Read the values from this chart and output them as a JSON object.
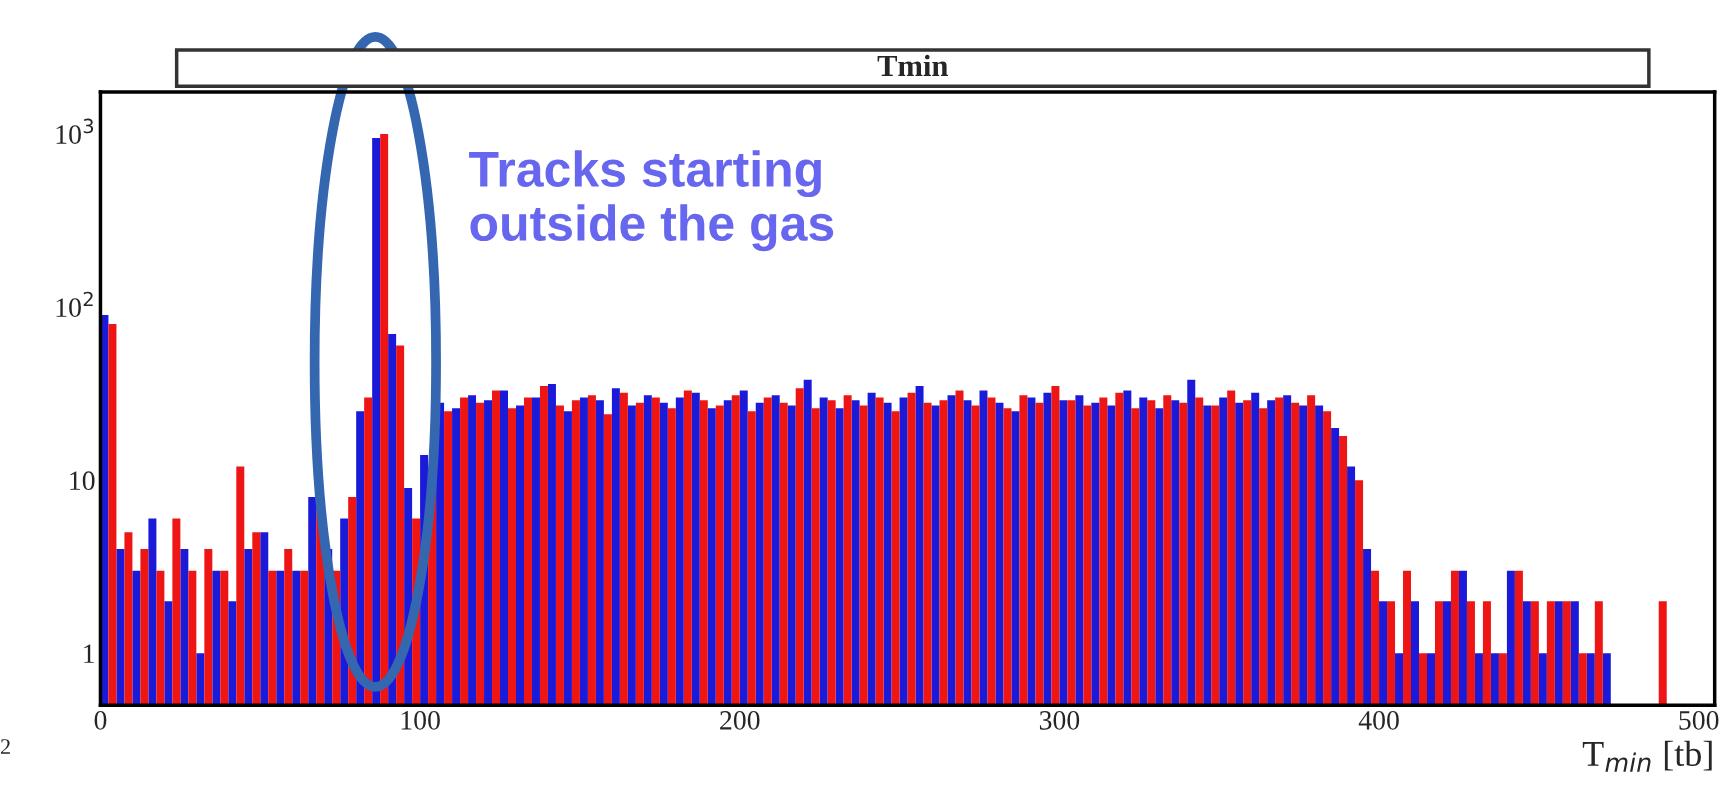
{
  "chart_data": {
    "type": "histogram",
    "title": "Tmin",
    "xlabel": "T$_{min}$ [tb]",
    "bins": [
      0,
      5,
      10,
      15,
      20,
      25,
      30,
      35,
      40,
      45,
      50,
      55,
      60,
      65,
      70,
      75,
      80,
      85,
      90,
      95,
      100,
      105,
      110,
      115,
      120,
      125,
      130,
      135,
      140,
      145,
      150,
      155,
      160,
      165,
      170,
      175,
      180,
      185,
      190,
      195,
      200,
      205,
      210,
      215,
      220,
      225,
      230,
      235,
      240,
      245,
      250,
      255,
      260,
      265,
      270,
      275,
      280,
      285,
      290,
      295,
      300,
      305,
      310,
      315,
      320,
      325,
      330,
      335,
      340,
      345,
      350,
      355,
      360,
      365,
      370,
      375,
      380,
      385,
      390,
      395,
      400,
      405,
      410,
      415,
      420,
      425,
      430,
      435,
      440,
      445,
      450,
      455,
      460,
      465,
      470,
      475,
      480,
      485,
      490,
      495,
      500
    ],
    "series": [
      {
        "color": "#1a1ad8",
        "values": [
          90,
          4,
          3,
          6,
          2,
          4,
          1,
          3,
          2,
          4,
          5,
          3,
          3,
          8,
          4,
          6,
          25,
          950,
          70,
          9,
          14,
          28,
          26,
          31,
          29,
          33,
          27,
          30,
          36,
          25,
          30,
          29,
          34,
          27,
          31,
          28,
          30,
          32,
          26,
          29,
          33,
          28,
          31,
          27,
          38,
          30,
          26,
          29,
          32,
          28,
          30,
          35,
          27,
          31,
          29,
          33,
          28,
          25,
          30,
          32,
          29,
          31,
          28,
          27,
          33,
          30,
          26,
          29,
          38,
          27,
          30,
          28,
          32,
          29,
          31,
          27,
          27,
          20,
          12,
          4,
          2,
          1,
          2,
          1,
          2,
          3,
          1,
          1,
          3,
          2,
          1,
          2,
          2,
          1,
          1,
          null,
          null,
          null,
          null,
          null
        ]
      },
      {
        "color": "#ee1515",
        "values": [
          80,
          5,
          4,
          3,
          6,
          3,
          4,
          3,
          12,
          5,
          3,
          4,
          3,
          8,
          3,
          8,
          30,
          1000,
          60,
          6,
          12,
          25,
          30,
          28,
          33,
          26,
          30,
          35,
          27,
          29,
          31,
          24,
          32,
          28,
          30,
          26,
          33,
          29,
          27,
          31,
          25,
          30,
          28,
          34,
          26,
          29,
          31,
          27,
          30,
          25,
          32,
          28,
          29,
          33,
          27,
          30,
          26,
          31,
          28,
          35,
          29,
          27,
          30,
          32,
          26,
          29,
          31,
          28,
          30,
          27,
          33,
          29,
          26,
          30,
          28,
          31,
          25,
          18,
          10,
          3,
          2,
          3,
          1,
          2,
          3,
          2,
          2,
          1,
          3,
          2,
          2,
          2,
          1,
          2,
          null,
          null,
          null,
          2,
          null,
          null
        ]
      }
    ],
    "xlim": [
      0,
      505
    ],
    "xticks": [
      0,
      100,
      200,
      300,
      400,
      500
    ],
    "ylim": [
      0.5,
      1750
    ],
    "log": true,
    "yticks": [
      1,
      10,
      {
        "value": 100,
        "label": "10$^{2}$"
      },
      {
        "value": 1000,
        "label": "10$^{3}$"
      }
    ],
    "grid": false,
    "annotations": [
      "Tracks starting\noutside the gas",
      "2"
    ]
  }
}
